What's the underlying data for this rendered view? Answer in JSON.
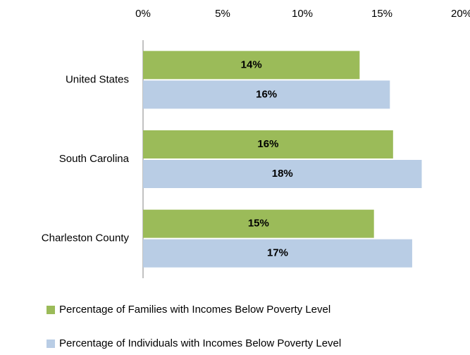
{
  "chart_data": {
    "type": "hbar",
    "categories": [
      "United States",
      "South Carolina",
      "Charleston County"
    ],
    "series": [
      {
        "name": "Percentage of Families with Incomes Below Poverty Level",
        "color": "#9bbb59",
        "values": [
          13.6,
          15.7,
          14.5
        ],
        "value_labels": [
          "14%",
          "16%",
          "15%"
        ]
      },
      {
        "name": "Percentage of Individuals with Incomes Below Poverty Level",
        "color": "#b9cde5",
        "values": [
          15.5,
          17.5,
          16.9
        ],
        "value_labels": [
          "16%",
          "18%",
          "17%"
        ]
      }
    ],
    "xlim": [
      0,
      20
    ],
    "xticks": [
      {
        "value": 0,
        "label": "0%"
      },
      {
        "value": 5,
        "label": "5%"
      },
      {
        "value": 10,
        "label": "10%"
      },
      {
        "value": 15,
        "label": "15%"
      },
      {
        "value": 20,
        "label": "20%"
      }
    ],
    "legend": "bottom"
  }
}
